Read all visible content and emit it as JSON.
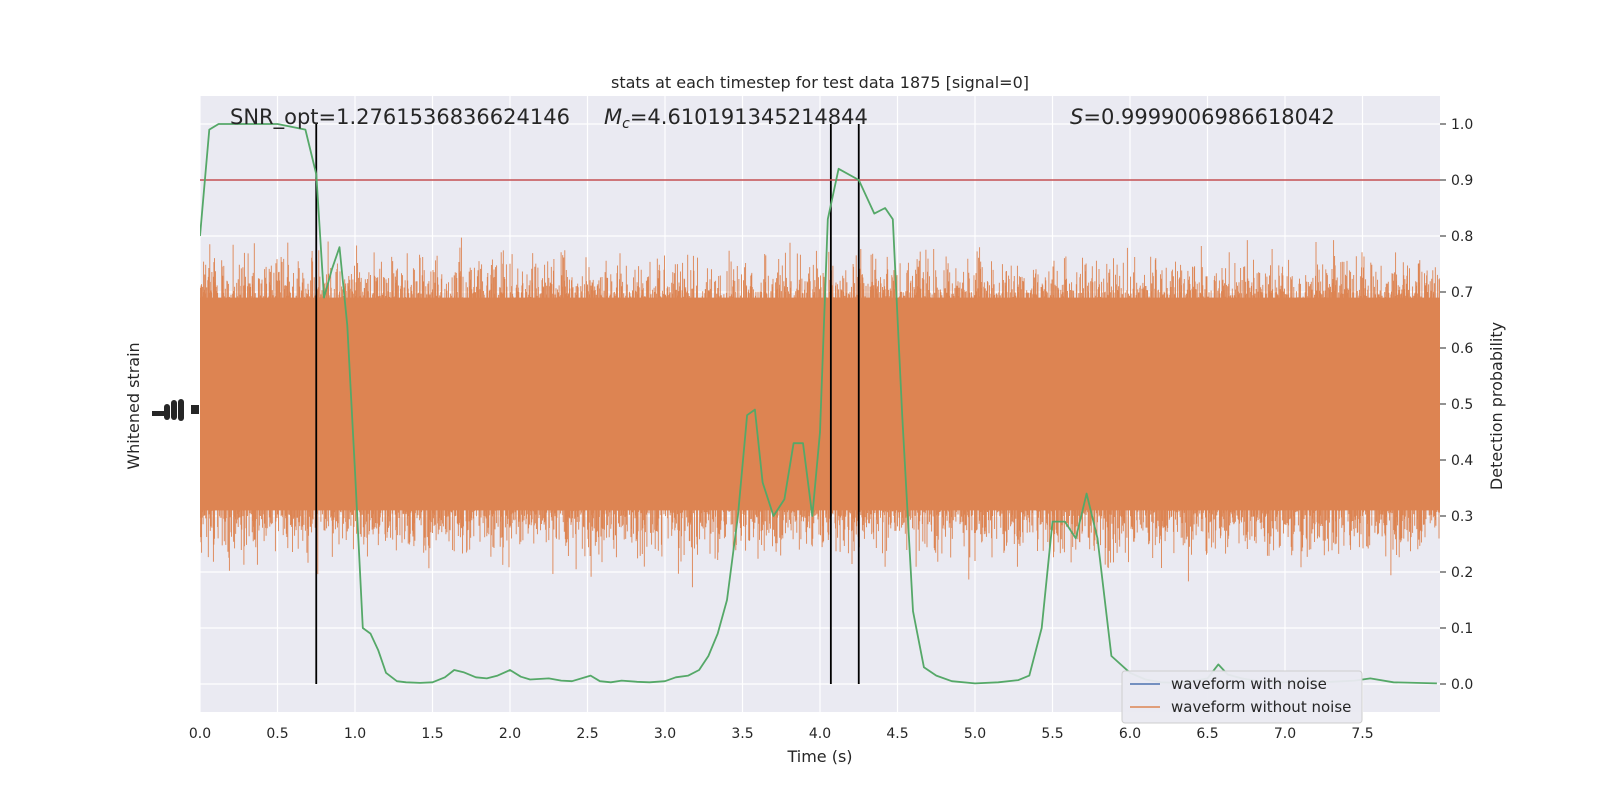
{
  "chart_data": {
    "type": "line",
    "title": "stats at each timestep for test data 1875 [signal=0]",
    "xlabel": "Time (s)",
    "ylabel_left": "Whitened strain",
    "ylabel_right": "Detection probability",
    "xlim": [
      0.0,
      8.0
    ],
    "ylim_right": [
      -0.05,
      1.05
    ],
    "x_ticks": [
      "0.0",
      "0.5",
      "1.0",
      "1.5",
      "2.0",
      "2.5",
      "3.0",
      "3.5",
      "4.0",
      "4.5",
      "5.0",
      "5.5",
      "6.0",
      "6.5",
      "7.0",
      "7.5"
    ],
    "y_ticks_right": [
      "0.0",
      "0.1",
      "0.2",
      "0.3",
      "0.4",
      "0.5",
      "0.6",
      "0.7",
      "0.8",
      "0.9",
      "1.0"
    ],
    "grid": true,
    "legend_position": "lower right",
    "annotations": {
      "snr": "SNR_opt=1.2761536836624146",
      "mc_symbol": "M",
      "mc_sub": "c",
      "mc_value": "=4.610191345214844",
      "s_symbol": "S",
      "s_value": "=0.9999006986618042"
    },
    "threshold": 0.9,
    "vertical_lines_x": [
      0.75,
      4.07,
      4.25
    ],
    "series": [
      {
        "name": "waveform with noise",
        "color": "#4c72b0"
      },
      {
        "name": "waveform without noise",
        "color": "#dd8452"
      }
    ],
    "detection_probability": {
      "color": "#55a868",
      "x": [
        0.0,
        0.06,
        0.12,
        0.25,
        0.5,
        0.68,
        0.75,
        0.8,
        0.85,
        0.9,
        0.95,
        1.0,
        1.05,
        1.1,
        1.15,
        1.2,
        1.27,
        1.33,
        1.42,
        1.5,
        1.58,
        1.64,
        1.7,
        1.78,
        1.85,
        1.92,
        2.0,
        2.07,
        2.13,
        2.25,
        2.33,
        2.4,
        2.52,
        2.58,
        2.65,
        2.72,
        2.82,
        2.9,
        3.0,
        3.07,
        3.15,
        3.22,
        3.28,
        3.34,
        3.4,
        3.47,
        3.53,
        3.58,
        3.63,
        3.7,
        3.77,
        3.83,
        3.89,
        3.95,
        4.0,
        4.05,
        4.12,
        4.25,
        4.35,
        4.42,
        4.47,
        4.53,
        4.6,
        4.67,
        4.75,
        4.85,
        5.0,
        5.15,
        5.28,
        5.35,
        5.43,
        5.5,
        5.58,
        5.65,
        5.72,
        5.79,
        5.88,
        6.0,
        6.1,
        6.2,
        6.3,
        6.4,
        6.5,
        6.57,
        6.63,
        6.72,
        6.85,
        7.0,
        7.15,
        7.3,
        7.45,
        7.55,
        7.7,
        7.85,
        7.98
      ],
      "y": [
        0.8,
        0.99,
        1.0,
        1.0,
        1.0,
        0.99,
        0.91,
        0.69,
        0.74,
        0.78,
        0.64,
        0.38,
        0.1,
        0.09,
        0.06,
        0.02,
        0.005,
        0.003,
        0.002,
        0.003,
        0.012,
        0.025,
        0.021,
        0.012,
        0.01,
        0.015,
        0.025,
        0.013,
        0.008,
        0.01,
        0.006,
        0.005,
        0.015,
        0.005,
        0.003,
        0.006,
        0.004,
        0.003,
        0.005,
        0.012,
        0.015,
        0.025,
        0.05,
        0.09,
        0.15,
        0.3,
        0.48,
        0.49,
        0.36,
        0.3,
        0.33,
        0.43,
        0.43,
        0.3,
        0.45,
        0.83,
        0.92,
        0.9,
        0.84,
        0.85,
        0.83,
        0.48,
        0.13,
        0.03,
        0.015,
        0.005,
        0.001,
        0.003,
        0.007,
        0.015,
        0.1,
        0.29,
        0.29,
        0.26,
        0.34,
        0.26,
        0.05,
        0.02,
        0.008,
        0.003,
        0.002,
        0.005,
        0.01,
        0.035,
        0.017,
        0.01,
        0.004,
        0.003,
        0.003,
        0.004,
        0.006,
        0.01,
        0.003,
        0.002,
        0.001
      ]
    }
  }
}
